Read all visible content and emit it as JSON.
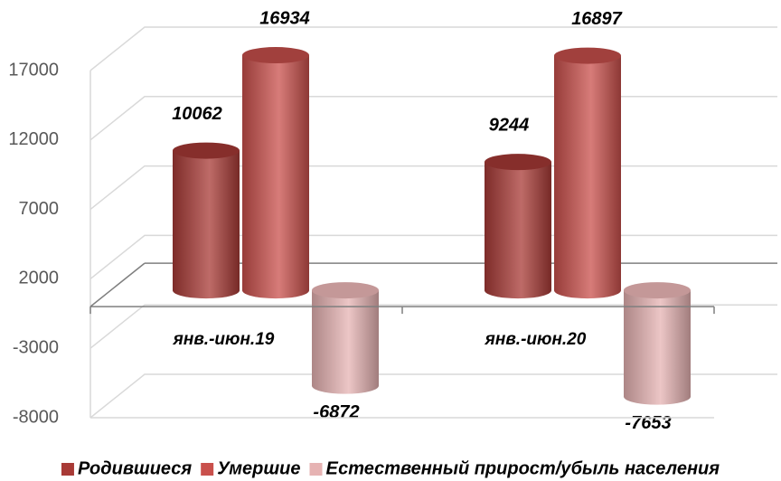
{
  "chart_data": {
    "type": "bar3d",
    "categories": [
      "янв.-июн.19",
      "янв.-июн.20"
    ],
    "series": [
      {
        "name": "Родившиеся",
        "color": "#a83a36",
        "values": [
          10062,
          9244
        ]
      },
      {
        "name": "Умершие",
        "color": "#c9504c",
        "values": [
          16934,
          16897
        ]
      },
      {
        "name": "Естественный прирост/убыль населения",
        "color": "#e6b3b3",
        "values": [
          -6872,
          -7653
        ]
      }
    ],
    "ylim": [
      -8000,
      17000
    ],
    "yticks": [
      -8000,
      -3000,
      2000,
      7000,
      12000,
      17000
    ],
    "grid": true,
    "legend": "bottom"
  }
}
